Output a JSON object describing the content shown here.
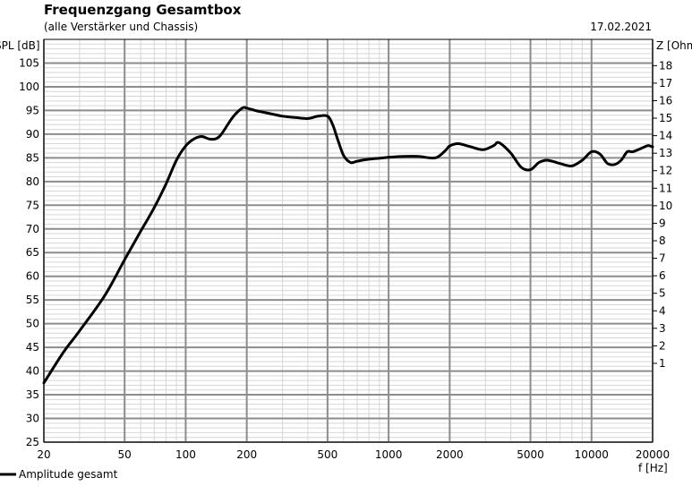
{
  "header": {
    "title": "Frequenzgang Gesamtbox",
    "subtitle": "(alle Verstärker und Chassis)",
    "date": "17.02.2021"
  },
  "chart_data": {
    "type": "line",
    "title": "Frequenzgang Gesamtbox",
    "subtitle": "(alle Verstärker und Chassis)",
    "xlabel": "f [Hz]",
    "ylabel": "SPL [dB]",
    "y2label": "Z [Ohm]",
    "xscale": "log",
    "xlim": [
      20,
      20000
    ],
    "ylim": [
      25,
      110
    ],
    "y2lim": [
      -3.5,
      19.5
    ],
    "grid": true,
    "legend": "bottom-left",
    "x_ticks": [
      20,
      50,
      100,
      200,
      500,
      1000,
      2000,
      5000,
      10000,
      20000
    ],
    "x_tick_labels": [
      "20",
      "50",
      "100",
      "200",
      "500",
      "1000",
      "2000",
      "5000",
      "10000",
      "20000"
    ],
    "y_ticks": [
      25,
      30,
      35,
      40,
      45,
      50,
      55,
      60,
      65,
      70,
      75,
      80,
      85,
      90,
      95,
      100,
      105
    ],
    "y2_ticks": [
      1,
      2,
      3,
      4,
      5,
      6,
      7,
      8,
      9,
      10,
      11,
      12,
      13,
      14,
      15,
      16,
      17,
      18
    ],
    "series": [
      {
        "name": "Amplitude gesamt",
        "color": "#000000",
        "x": [
          20,
          25,
          30,
          40,
          50,
          60,
          70,
          80,
          90,
          100,
          110,
          120,
          130,
          140,
          150,
          170,
          190,
          200,
          220,
          250,
          300,
          350,
          400,
          450,
          500,
          530,
          560,
          600,
          650,
          700,
          800,
          1000,
          1200,
          1400,
          1700,
          1900,
          2000,
          2200,
          2500,
          2800,
          3000,
          3300,
          3500,
          4000,
          4500,
          5000,
          5500,
          6000,
          6500,
          7000,
          8000,
          9000,
          10000,
          11000,
          12000,
          13000,
          14000,
          15000,
          16000,
          18000,
          19000,
          20000
        ],
        "y": [
          37.5,
          44,
          48.5,
          56,
          63.5,
          69.5,
          74.5,
          79.5,
          84.5,
          87.5,
          89,
          89.5,
          89,
          89,
          90,
          93.5,
          95.5,
          95.5,
          95,
          94.5,
          93.8,
          93.5,
          93.3,
          93.8,
          93.8,
          92,
          89,
          85.5,
          84,
          84.3,
          84.7,
          85.1,
          85.3,
          85.3,
          85,
          86.5,
          87.5,
          88,
          87.4,
          86.8,
          86.8,
          87.6,
          88.2,
          86,
          83,
          82.5,
          84,
          84.5,
          84.2,
          83.8,
          83.3,
          84.5,
          86.3,
          85.8,
          83.8,
          83.6,
          84.5,
          86.3,
          86.3,
          87.2,
          87.6,
          87.3
        ]
      }
    ]
  }
}
